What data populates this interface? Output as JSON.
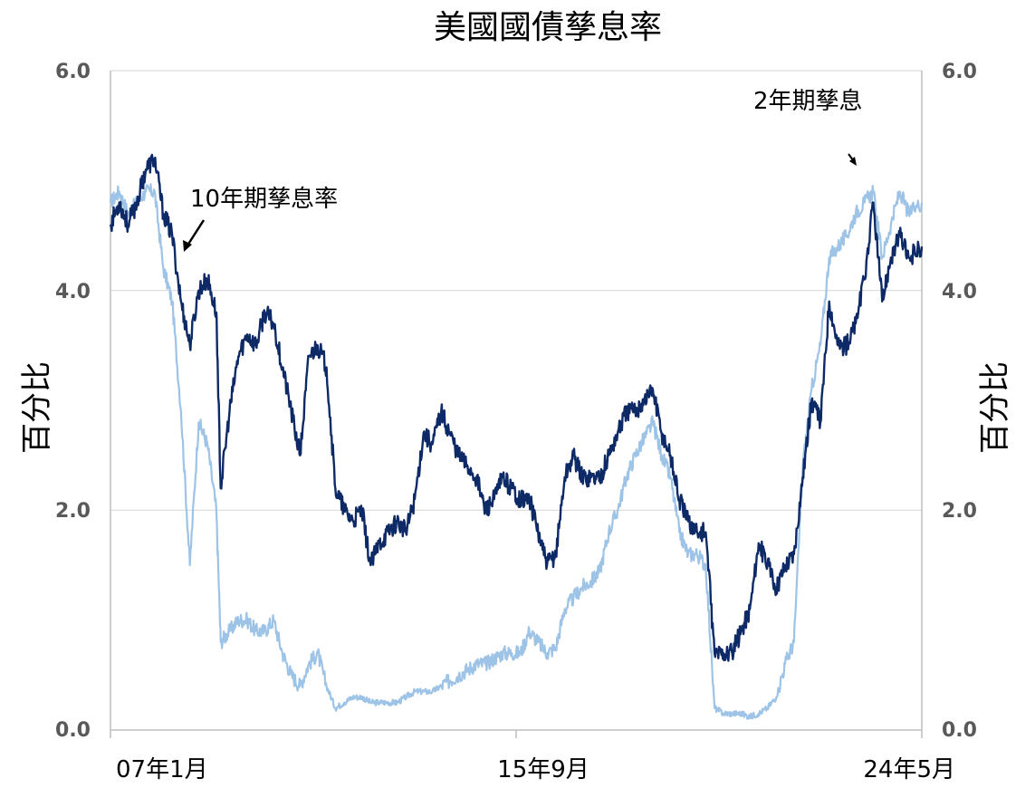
{
  "chart_data": {
    "type": "line",
    "title": "美國國債孳息率",
    "ylabel_left": "百分比",
    "ylabel_right": "百分比",
    "ylim": [
      0,
      6
    ],
    "yticks": [
      "0.0",
      "2.0",
      "4.0",
      "6.0"
    ],
    "xticks": [
      "07年1月",
      "15年9月",
      "24年5月"
    ],
    "grid": true,
    "colors": {
      "ten_year": "#0d2a66",
      "two_year": "#9dc3e6",
      "grid": "#d9d9d9",
      "axis": "#bfbfbf"
    },
    "annotations": [
      {
        "text": "10年期孳息率",
        "series": "ten_year"
      },
      {
        "text": "2年期孳息",
        "series": "two_year"
      }
    ],
    "x_range": [
      2006.5,
      2024.9
    ],
    "series": [
      {
        "key": "ten_year",
        "x": [
          2006.5,
          2006.7,
          2006.9,
          2007.1,
          2007.3,
          2007.5,
          2007.7,
          2007.9,
          2008.1,
          2008.3,
          2008.5,
          2008.7,
          2008.9,
          2009.0,
          2009.2,
          2009.4,
          2009.6,
          2009.8,
          2010.0,
          2010.2,
          2010.4,
          2010.6,
          2010.8,
          2011.0,
          2011.2,
          2011.4,
          2011.6,
          2011.8,
          2012.0,
          2012.2,
          2012.4,
          2012.6,
          2012.8,
          2013.0,
          2013.2,
          2013.4,
          2013.6,
          2013.8,
          2014.0,
          2014.2,
          2014.4,
          2014.6,
          2014.8,
          2015.0,
          2015.2,
          2015.4,
          2015.6,
          2015.8,
          2016.0,
          2016.2,
          2016.4,
          2016.6,
          2016.8,
          2017.0,
          2017.2,
          2017.4,
          2017.6,
          2017.8,
          2018.0,
          2018.2,
          2018.4,
          2018.6,
          2018.8,
          2019.0,
          2019.2,
          2019.4,
          2019.6,
          2019.8,
          2020.0,
          2020.2,
          2020.4,
          2020.6,
          2020.8,
          2021.0,
          2021.2,
          2021.4,
          2021.6,
          2021.8,
          2022.0,
          2022.2,
          2022.4,
          2022.6,
          2022.8,
          2023.0,
          2023.2,
          2023.4,
          2023.6,
          2023.8,
          2024.0,
          2024.2,
          2024.4,
          2024.6,
          2024.9
        ],
        "values": [
          4.6,
          4.8,
          4.6,
          4.8,
          5.1,
          5.2,
          4.7,
          4.5,
          3.9,
          3.5,
          4.0,
          4.1,
          3.8,
          2.2,
          2.9,
          3.4,
          3.6,
          3.5,
          3.8,
          3.7,
          3.3,
          2.9,
          2.5,
          3.4,
          3.5,
          3.3,
          2.2,
          2.0,
          1.9,
          2.0,
          1.5,
          1.7,
          1.8,
          1.9,
          1.8,
          2.1,
          2.7,
          2.6,
          2.9,
          2.7,
          2.5,
          2.4,
          2.3,
          2.0,
          2.1,
          2.3,
          2.2,
          2.1,
          2.1,
          1.8,
          1.5,
          1.6,
          2.3,
          2.5,
          2.3,
          2.3,
          2.3,
          2.5,
          2.7,
          2.9,
          2.9,
          3.0,
          3.1,
          2.7,
          2.5,
          2.1,
          1.9,
          1.8,
          1.8,
          0.7,
          0.7,
          0.7,
          0.9,
          1.1,
          1.7,
          1.5,
          1.3,
          1.5,
          1.6,
          2.3,
          3.0,
          2.8,
          3.9,
          3.5,
          3.5,
          3.7,
          4.1,
          4.8,
          3.9,
          4.3,
          4.5,
          4.3,
          4.4
        ]
      },
      {
        "key": "two_year",
        "x": [
          2006.5,
          2006.7,
          2006.9,
          2007.1,
          2007.3,
          2007.5,
          2007.7,
          2007.9,
          2008.1,
          2008.3,
          2008.5,
          2008.7,
          2008.9,
          2009.0,
          2009.2,
          2009.4,
          2009.6,
          2009.8,
          2010.0,
          2010.2,
          2010.4,
          2010.6,
          2010.8,
          2011.0,
          2011.2,
          2011.4,
          2011.6,
          2011.8,
          2012.0,
          2012.2,
          2012.4,
          2012.6,
          2012.8,
          2013.0,
          2013.2,
          2013.4,
          2013.6,
          2013.8,
          2014.0,
          2014.2,
          2014.4,
          2014.6,
          2014.8,
          2015.0,
          2015.2,
          2015.4,
          2015.6,
          2015.8,
          2016.0,
          2016.2,
          2016.4,
          2016.6,
          2016.8,
          2017.0,
          2017.2,
          2017.4,
          2017.6,
          2017.8,
          2018.0,
          2018.2,
          2018.4,
          2018.6,
          2018.8,
          2019.0,
          2019.2,
          2019.4,
          2019.6,
          2019.8,
          2020.0,
          2020.2,
          2020.4,
          2020.6,
          2020.8,
          2021.0,
          2021.2,
          2021.4,
          2021.6,
          2021.8,
          2022.0,
          2022.2,
          2022.4,
          2022.6,
          2022.8,
          2023.0,
          2023.2,
          2023.4,
          2023.6,
          2023.8,
          2024.0,
          2024.2,
          2024.4,
          2024.6,
          2024.9
        ],
        "values": [
          4.8,
          4.9,
          4.7,
          4.8,
          4.9,
          4.9,
          4.2,
          3.9,
          2.9,
          1.5,
          2.8,
          2.6,
          2.0,
          0.8,
          0.9,
          1.0,
          1.0,
          0.9,
          0.9,
          1.0,
          0.7,
          0.5,
          0.4,
          0.6,
          0.7,
          0.4,
          0.2,
          0.25,
          0.3,
          0.3,
          0.25,
          0.25,
          0.25,
          0.25,
          0.3,
          0.35,
          0.35,
          0.35,
          0.4,
          0.45,
          0.5,
          0.55,
          0.6,
          0.6,
          0.65,
          0.7,
          0.7,
          0.7,
          0.9,
          0.8,
          0.7,
          0.75,
          1.1,
          1.2,
          1.3,
          1.35,
          1.45,
          1.8,
          2.0,
          2.3,
          2.5,
          2.65,
          2.8,
          2.5,
          2.3,
          1.8,
          1.6,
          1.6,
          1.5,
          0.2,
          0.15,
          0.15,
          0.15,
          0.12,
          0.15,
          0.2,
          0.3,
          0.6,
          0.8,
          2.4,
          3.1,
          3.5,
          4.3,
          4.4,
          4.5,
          4.7,
          4.8,
          4.9,
          4.3,
          4.6,
          4.9,
          4.7,
          4.8
        ]
      }
    ]
  }
}
